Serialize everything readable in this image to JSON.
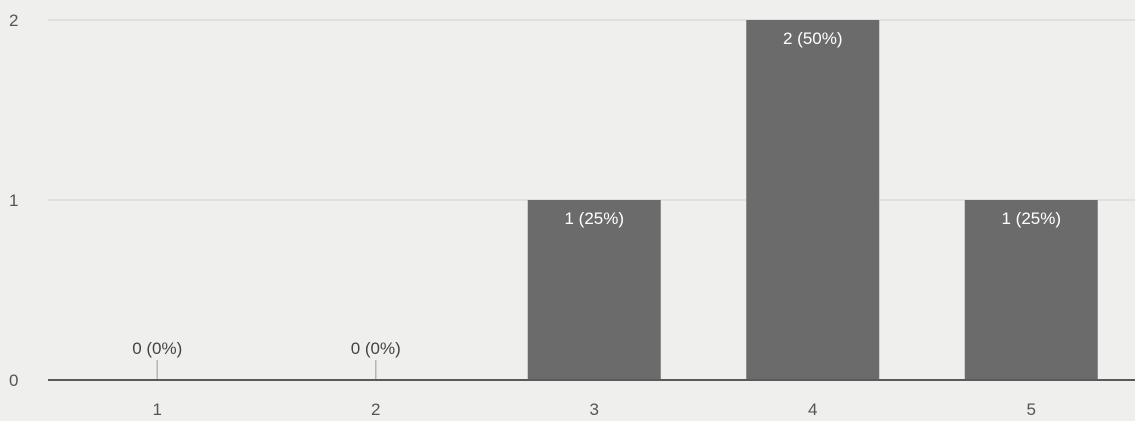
{
  "chart_data": {
    "type": "bar",
    "categories": [
      "1",
      "2",
      "3",
      "4",
      "5"
    ],
    "values": [
      0,
      0,
      1,
      2,
      1
    ],
    "data_labels": [
      "0 (0%)",
      "0 (0%)",
      "1 (25%)",
      "2 (50%)",
      "1 (25%)"
    ],
    "y_ticks": [
      "0",
      "1",
      "2"
    ],
    "ylim": [
      0,
      2
    ],
    "title": "",
    "xlabel": "",
    "ylabel": "",
    "grid": true,
    "bar_color": "#6b6b6b",
    "inside_label_color": "#ffffff",
    "outside_label_color": "#444444"
  }
}
